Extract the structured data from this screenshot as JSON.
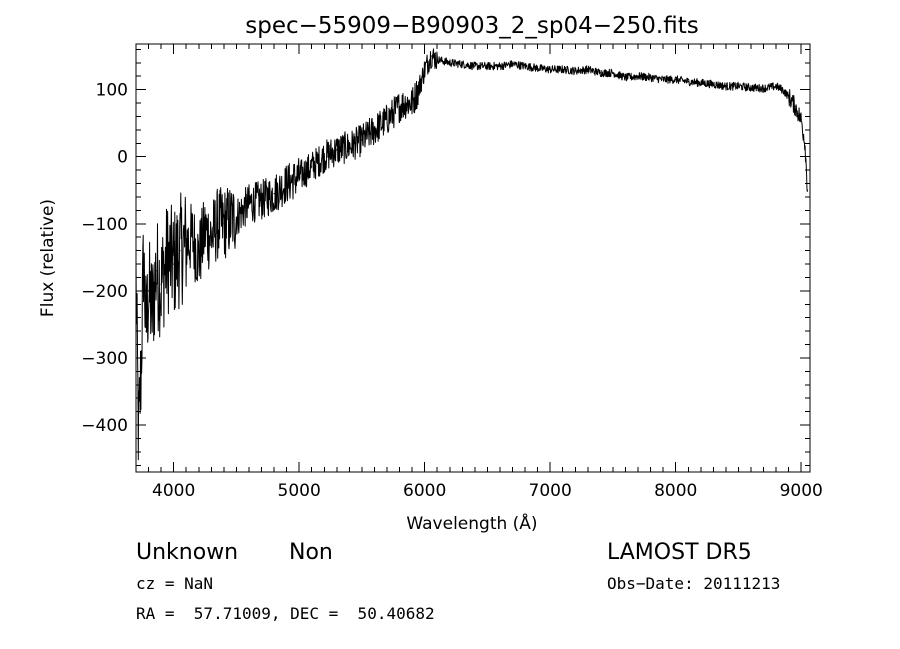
{
  "chart_data": {
    "type": "line",
    "title": "spec−55909−B90903_2_sp04−250.fits",
    "xlabel": "Wavelength (Å)",
    "ylabel": "Flux (relative)",
    "xlim": [
      3700,
      9070
    ],
    "ylim": [
      -470,
      168
    ],
    "x_ticks": [
      4000,
      5000,
      6000,
      7000,
      8000,
      9000
    ],
    "x_tick_labels": [
      "4000",
      "5000",
      "6000",
      "7000",
      "8000",
      "9000"
    ],
    "y_ticks": [
      100,
      0,
      -100,
      -200,
      -300,
      -400
    ],
    "y_tick_labels": [
      "100",
      "0",
      "−100",
      "−200",
      "−300",
      "−400"
    ],
    "grid": false,
    "series": [
      {
        "x": [
          3700,
          3720,
          3740,
          3760,
          3780,
          3800,
          3830,
          3860,
          3900,
          3950,
          4000,
          4050,
          4100,
          4150,
          4200,
          4250,
          4300,
          4350,
          4400,
          4450,
          4500,
          4600,
          4700,
          4800,
          4900,
          5000,
          5100,
          5200,
          5300,
          5400,
          5500,
          5600,
          5700,
          5800,
          5850,
          5900,
          5950,
          6000,
          6050,
          6100,
          6200,
          6300,
          6400,
          6500,
          6600,
          6700,
          6800,
          6900,
          7000,
          7100,
          7200,
          7300,
          7400,
          7500,
          7600,
          7700,
          7800,
          7900,
          8000,
          8100,
          8200,
          8300,
          8400,
          8500,
          8600,
          8700,
          8800,
          8850,
          8900,
          8950,
          9000,
          9030,
          9050
        ],
        "y": [
          -180,
          -420,
          -320,
          -150,
          -260,
          -200,
          -230,
          -170,
          -190,
          -150,
          -160,
          -140,
          -130,
          -120,
          -150,
          -110,
          -120,
          -100,
          -100,
          -95,
          -90,
          -70,
          -65,
          -55,
          -40,
          -30,
          -15,
          0,
          10,
          15,
          25,
          40,
          55,
          75,
          80,
          80,
          100,
          130,
          150,
          145,
          140,
          138,
          135,
          135,
          135,
          138,
          135,
          132,
          130,
          130,
          128,
          130,
          125,
          125,
          118,
          120,
          118,
          115,
          115,
          112,
          110,
          108,
          105,
          105,
          103,
          102,
          105,
          100,
          90,
          75,
          55,
          20,
          -50
        ]
      }
    ]
  },
  "annotations": {
    "object_class": "Unknown",
    "object_subclass": "Non",
    "survey": "LAMOST DR5",
    "cz": "cz = NaN",
    "obs_date": "Obs−Date: 20111213",
    "coords": "RA =  57.71009, DEC =  50.40682"
  }
}
